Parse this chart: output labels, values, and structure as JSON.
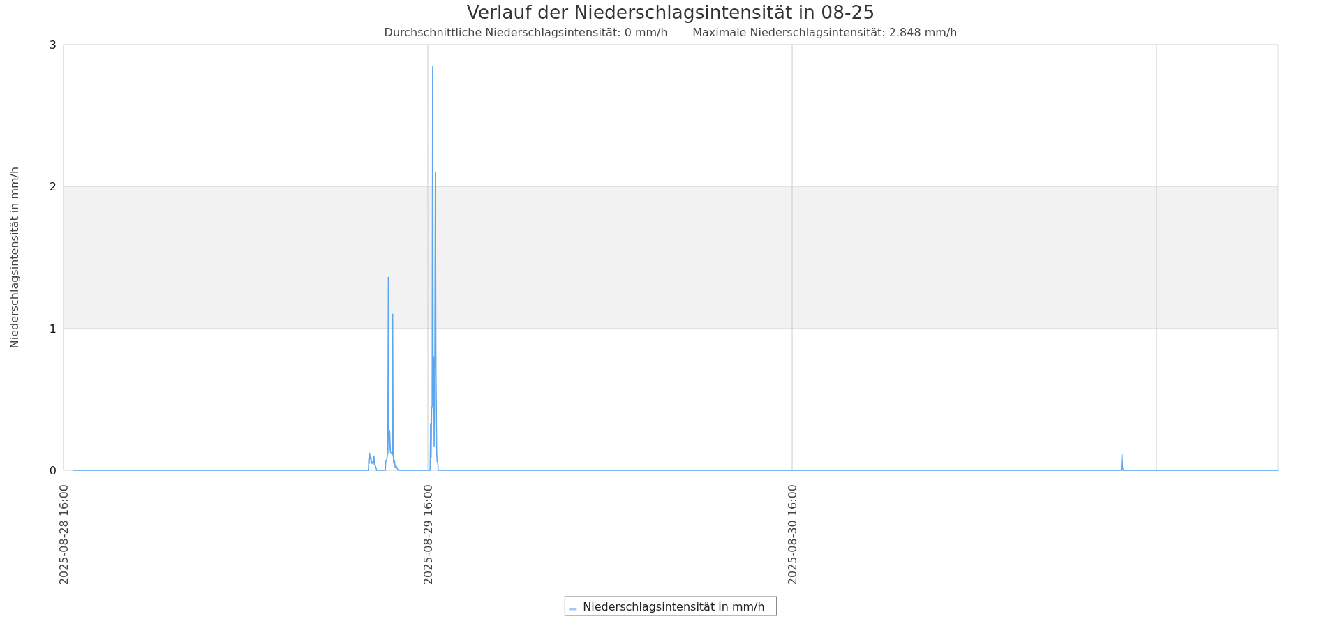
{
  "chart_data": {
    "type": "line",
    "title": "Verlauf der Niederschlagsintensität in 08-25",
    "subtitle": "Durchschnittliche Niederschlagsintensität: 0 mm/h       Maximale Niederschlagsintensität: 2.848 mm/h",
    "ylabel": "Niederschlagsintensität in mm/h",
    "x": [
      "2025-08-28T16:40",
      "2025-08-29T12:05",
      "2025-08-29T12:07",
      "2025-08-29T12:09",
      "2025-08-29T12:10",
      "2025-08-29T12:13",
      "2025-08-29T12:15",
      "2025-08-29T12:18",
      "2025-08-29T12:21",
      "2025-08-29T12:24",
      "2025-08-29T12:27",
      "2025-08-29T12:30",
      "2025-08-29T12:33",
      "2025-08-29T12:38",
      "2025-08-29T13:12",
      "2025-08-29T13:14",
      "2025-08-29T13:17",
      "2025-08-29T13:20",
      "2025-08-29T13:22",
      "2025-08-29T13:24",
      "2025-08-29T13:26",
      "2025-08-29T13:29",
      "2025-08-29T13:32",
      "2025-08-29T13:36",
      "2025-08-29T13:40",
      "2025-08-29T13:41",
      "2025-08-29T13:43",
      "2025-08-29T13:45",
      "2025-08-29T13:48",
      "2025-08-29T13:51",
      "2025-08-29T13:55",
      "2025-08-29T14:00",
      "2025-08-29T14:03",
      "2025-08-29T16:09",
      "2025-08-29T16:11",
      "2025-08-29T16:13",
      "2025-08-29T16:15",
      "2025-08-29T16:17",
      "2025-08-29T16:19",
      "2025-08-29T16:21",
      "2025-08-29T16:23",
      "2025-08-29T16:25",
      "2025-08-29T16:27",
      "2025-08-29T16:30",
      "2025-08-29T16:32",
      "2025-08-29T16:33",
      "2025-08-29T16:35",
      "2025-08-29T16:37",
      "2025-08-29T16:39",
      "2025-08-29T16:41",
      "2025-08-31T13:41",
      "2025-08-31T13:44",
      "2025-08-31T13:46",
      "2025-08-31T13:49",
      "2025-09-01T00:00"
    ],
    "series": [
      {
        "name": "Niederschlagsintensität in mm/h",
        "color": "#5ea6f0",
        "values": [
          0,
          0,
          0.09,
          0.05,
          0.12,
          0.08,
          0.09,
          0.05,
          0.06,
          0.04,
          0.1,
          0.04,
          0.03,
          0,
          0,
          0.07,
          0.07,
          0.1,
          0.28,
          1.36,
          0.12,
          0.28,
          0.13,
          0.12,
          0.11,
          1.1,
          0.13,
          0.05,
          0.07,
          0.02,
          0.03,
          0.01,
          0,
          0,
          0.33,
          0.09,
          0.44,
          0.45,
          2.848,
          0.48,
          0.8,
          0.17,
          0.45,
          2.1,
          0.75,
          0.56,
          0.13,
          0.06,
          0.07,
          0,
          0,
          0.11,
          0.02,
          0,
          0
        ]
      }
    ],
    "xlim": [
      "2025-08-28T16:00",
      "2025-09-01T00:00"
    ],
    "xticks": [
      {
        "value": "2025-08-28T16:00",
        "label": "2025-08-28 16:00"
      },
      {
        "value": "2025-08-29T16:00",
        "label": "2025-08-29 16:00"
      },
      {
        "value": "2025-08-30T16:00",
        "label": "2025-08-30 16:00"
      },
      {
        "value": "2025-08-31T16:00",
        "label": null
      }
    ],
    "ylim": [
      0,
      3
    ],
    "yticks": [
      0,
      1,
      2,
      3
    ],
    "bands": [
      {
        "axis": "y",
        "from": 1,
        "to": 2,
        "color": "#f2f2f2"
      }
    ],
    "grid": true,
    "legend": "bottom"
  }
}
